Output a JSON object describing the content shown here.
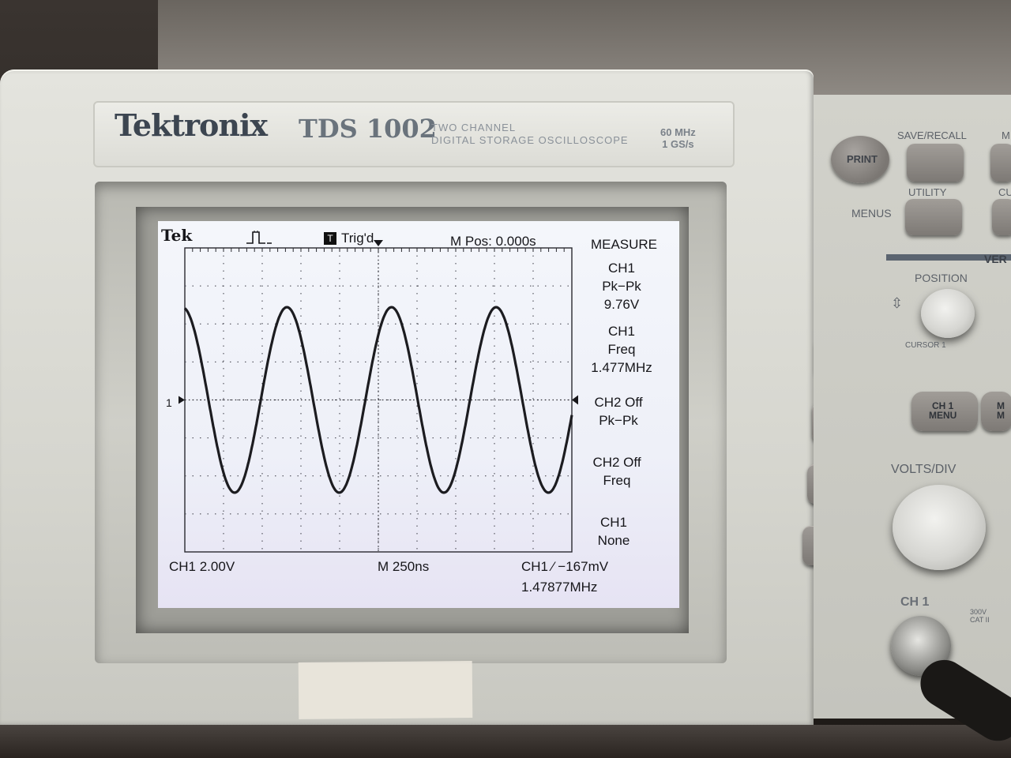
{
  "device": {
    "brand": "Tektronix",
    "model": "TDS 1002",
    "model_sub_line1": "TWO CHANNEL",
    "model_sub_line2": "DIGITAL STORAGE OSCILLOSCOPE",
    "spec_line1": "60 MHz",
    "spec_line2": "1 GS/s"
  },
  "screen": {
    "logo": "Tek",
    "trigger_status": "Trig'd",
    "trigger_icon": "T",
    "m_pos": "M Pos: 0.000s",
    "ch1_marker": "1",
    "bottom": {
      "ch1_scale": "CH1  2.00V",
      "timebase": "M 250ns",
      "trigger_level": "CH1 ⁄ −167mV",
      "freq_readout": "1.47877MHz"
    },
    "waveform": {
      "type": "sine",
      "peak_divisions": 2.44,
      "cycles_shown": 3.7,
      "color": "#1c1c20"
    },
    "menu": {
      "title": "MEASURE",
      "items": [
        {
          "line1": "CH1",
          "line2": "Pk−Pk",
          "line3": "9.76V"
        },
        {
          "line1": "CH1",
          "line2": "Freq",
          "line3": "1.477MHz"
        },
        {
          "line1": "CH2 Off",
          "line2": "Pk−Pk",
          "line3": ""
        },
        {
          "line1": "CH2 Off",
          "line2": "Freq",
          "line3": ""
        },
        {
          "line1": "CH1",
          "line2": "None",
          "line3": ""
        }
      ]
    }
  },
  "panel": {
    "print_label": "PRINT",
    "save_recall_label": "SAVE/RECALL",
    "save_recall_next": "M",
    "utility_label": "UTILITY",
    "utility_next": "CU",
    "menus_label": "MENUS",
    "vertical_label": "VER",
    "position_label": "POSITION",
    "cursor_label": "CURSOR 1",
    "ch1_menu_label": "CH 1\nMENU",
    "math_menu_label": "M\nM",
    "volts_div_label": "VOLTS/DIV",
    "ch1_input_label": "CH 1",
    "cat_label": "300V\nCAT II"
  }
}
